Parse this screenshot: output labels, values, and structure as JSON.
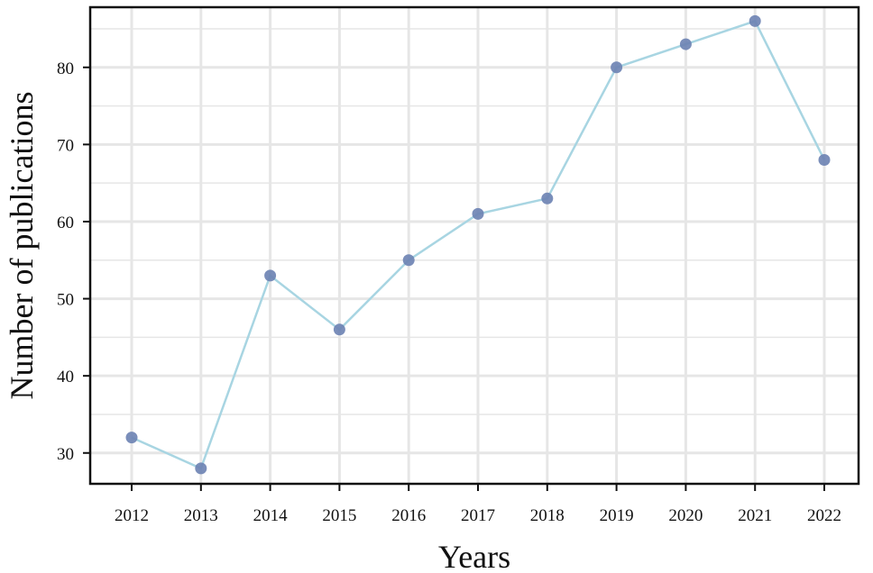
{
  "chart_data": {
    "type": "line",
    "title": "",
    "xlabel": "Years",
    "ylabel": "Number of publications",
    "categories": [
      "2012",
      "2013",
      "2014",
      "2015",
      "2016",
      "2017",
      "2018",
      "2019",
      "2020",
      "2021",
      "2022"
    ],
    "series": [
      {
        "values": [
          32,
          28,
          53,
          46,
          55,
          61,
          63,
          80,
          83,
          86,
          68
        ]
      }
    ],
    "y_ticks": [
      30,
      40,
      50,
      60,
      70,
      80
    ],
    "ylim": [
      26,
      87.8
    ],
    "grid": true,
    "legend": "none",
    "colors": {
      "line": "#a8d5e2",
      "marker": "#6b82b3",
      "grid": "#e6e6e6",
      "axis": "#111111"
    }
  }
}
